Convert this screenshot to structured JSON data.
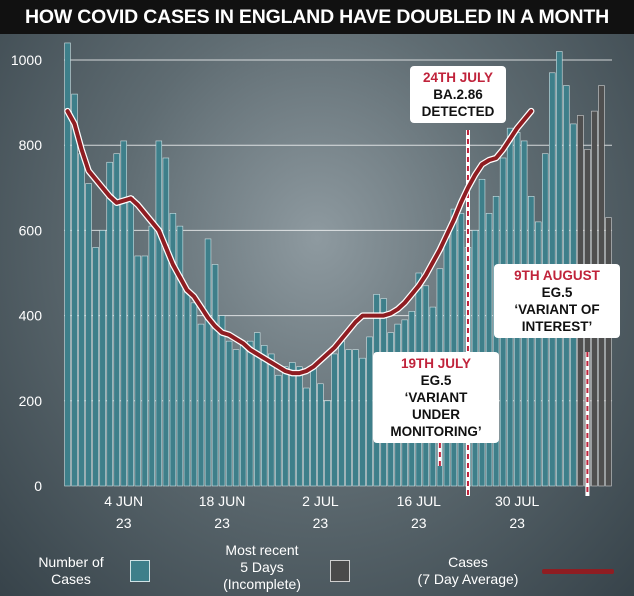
{
  "title": "HOW COVID CASES IN ENGLAND HAVE DOUBLED IN A MONTH",
  "colors": {
    "bar": "#3e7f8a",
    "bar_edge": "#cfe2e5",
    "recent_bar": "#4f4f4f",
    "line": "#8f1d22",
    "accent": "#c0233b"
  },
  "chart_data": {
    "type": "bar",
    "ylim": [
      0,
      1000
    ],
    "yticks": [
      0,
      200,
      400,
      600,
      800,
      1000
    ],
    "grid": true,
    "xtick_labels": [
      {
        "day": 8,
        "line1": "4 JUN",
        "line2": "23"
      },
      {
        "day": 22,
        "line1": "18 JUN",
        "line2": "23"
      },
      {
        "day": 36,
        "line1": "2 JUL",
        "line2": "23"
      },
      {
        "day": 50,
        "line1": "16 JUL",
        "line2": "23"
      },
      {
        "day": 64,
        "line1": "30 JUL",
        "line2": "23"
      }
    ],
    "series": [
      {
        "name": "Number of Cases",
        "values": [
          1040,
          920,
          780,
          710,
          560,
          600,
          760,
          780,
          810,
          680,
          540,
          540,
          610,
          810,
          770,
          640,
          610,
          460,
          430,
          380,
          580,
          520,
          400,
          340,
          320,
          330,
          340,
          360,
          330,
          310,
          260,
          280,
          290,
          280,
          230,
          280,
          240,
          200,
          310,
          340,
          320,
          320,
          300,
          350,
          450,
          440,
          360,
          380,
          390,
          410,
          500,
          470,
          420,
          510,
          590,
          650,
          640,
          560,
          600,
          720,
          640,
          680,
          770,
          840,
          830,
          810,
          680,
          620,
          780,
          970,
          1020,
          940,
          850,
          870,
          790,
          880,
          940,
          630
        ]
      },
      {
        "name": "Most recent 5 Days (Incomplete)",
        "start_day": 73,
        "values": [
          870,
          790,
          880,
          940,
          630
        ]
      },
      {
        "name": "Cases (7 Day Average)",
        "values": [
          880,
          850,
          790,
          740,
          720,
          700,
          680,
          665,
          670,
          675,
          660,
          640,
          620,
          600,
          560,
          520,
          490,
          460,
          445,
          420,
          395,
          375,
          360,
          355,
          345,
          335,
          320,
          310,
          300,
          290,
          280,
          270,
          265,
          265,
          270,
          280,
          295,
          310,
          325,
          345,
          365,
          385,
          400,
          400,
          400,
          400,
          405,
          415,
          430,
          450,
          470,
          495,
          525,
          555,
          590,
          625,
          665,
          700,
          730,
          755,
          765,
          770,
          790,
          815,
          840,
          860,
          880
        ]
      }
    ],
    "annotations": [
      {
        "day": 57,
        "date": "24TH JULY",
        "text": "BA.2.86\nDETECTED"
      },
      {
        "day": 53,
        "date": "19TH JULY",
        "text": "EG.5\n‘VARIANT\nUNDER\nMONITORING’"
      },
      {
        "day": 74,
        "date": "9TH AUGUST",
        "text": "EG.5\n‘VARIANT OF\nINTEREST’"
      }
    ]
  },
  "legend": {
    "cases_label": "Number of\nCases",
    "recent_label": "Most recent\n5 Days\n(Incomplete)",
    "avg_label": "Cases\n(7 Day Average)"
  }
}
